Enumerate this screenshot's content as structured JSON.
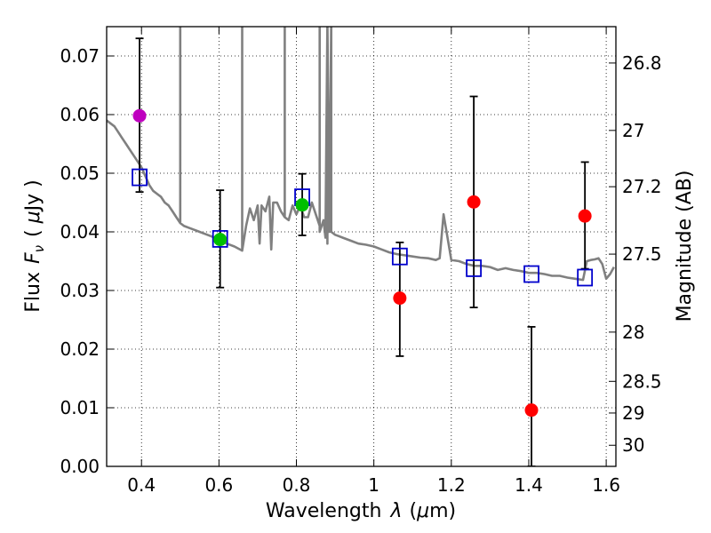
{
  "chart_data": {
    "type": "scatter",
    "xlabel": "Wavelength",
    "xlabel_symbol": "λ",
    "xlabel_unit_open": "(",
    "xlabel_unit_mu": "μ",
    "xlabel_unit_rest": "m)",
    "ylabel": "Flux",
    "ylabel_symbol": "F",
    "ylabel_symbol_sub": "ν",
    "ylabel_unit_open": "(",
    "ylabel_unit_mu": "μ",
    "ylabel_unit_rest": "Jy )",
    "y2label": "Magnitude (AB)",
    "xlim": [
      0.31,
      1.625
    ],
    "ylim": [
      0.0,
      0.075
    ],
    "grid": true,
    "x_ticks": [
      {
        "value": 0.4,
        "label": "0.4"
      },
      {
        "value": 0.6,
        "label": "0.6"
      },
      {
        "value": 0.8,
        "label": "0.8"
      },
      {
        "value": 1.0,
        "label": "1"
      },
      {
        "value": 1.2,
        "label": "1.2"
      },
      {
        "value": 1.4,
        "label": "1.4"
      },
      {
        "value": 1.6,
        "label": "1.6"
      }
    ],
    "y_ticks": [
      {
        "value": 0.0,
        "label": "0.00"
      },
      {
        "value": 0.01,
        "label": "0.01"
      },
      {
        "value": 0.02,
        "label": "0.02"
      },
      {
        "value": 0.03,
        "label": "0.03"
      },
      {
        "value": 0.04,
        "label": "0.04"
      },
      {
        "value": 0.05,
        "label": "0.05"
      },
      {
        "value": 0.06,
        "label": "0.06"
      },
      {
        "value": 0.07,
        "label": "0.07"
      }
    ],
    "y2_ticks": [
      {
        "label": "26.8",
        "flux": 0.0688
      },
      {
        "label": "27",
        "flux": 0.0573
      },
      {
        "label": "27.2",
        "flux": 0.0477
      },
      {
        "label": "27.5",
        "flux": 0.0362
      },
      {
        "label": "28",
        "flux": 0.0229
      },
      {
        "label": "28.5",
        "flux": 0.0145
      },
      {
        "label": "29",
        "flux": 0.0091
      },
      {
        "label": "30",
        "flux": 0.0036
      }
    ],
    "series": [
      {
        "name": "SED model",
        "kind": "line",
        "color": "#808080",
        "x": [
          0.31,
          0.32,
          0.33,
          0.34,
          0.35,
          0.36,
          0.37,
          0.38,
          0.39,
          0.4,
          0.41,
          0.42,
          0.43,
          0.44,
          0.45,
          0.46,
          0.47,
          0.48,
          0.49,
          0.5,
          0.5,
          0.5,
          0.51,
          0.53,
          0.55,
          0.57,
          0.59,
          0.6,
          0.62,
          0.64,
          0.66,
          0.66,
          0.66,
          0.67,
          0.68,
          0.69,
          0.7,
          0.705,
          0.71,
          0.72,
          0.73,
          0.735,
          0.74,
          0.75,
          0.76,
          0.77,
          0.77,
          0.77,
          0.78,
          0.79,
          0.8,
          0.81,
          0.82,
          0.83,
          0.84,
          0.85,
          0.86,
          0.86,
          0.86,
          0.87,
          0.875,
          0.88,
          0.88,
          0.88,
          0.885,
          0.89,
          0.89,
          0.89,
          0.9,
          0.92,
          0.94,
          0.96,
          0.98,
          1.0,
          1.02,
          1.04,
          1.06,
          1.08,
          1.1,
          1.12,
          1.14,
          1.16,
          1.17,
          1.18,
          1.2,
          1.22,
          1.24,
          1.26,
          1.28,
          1.3,
          1.32,
          1.34,
          1.36,
          1.38,
          1.4,
          1.42,
          1.44,
          1.46,
          1.48,
          1.5,
          1.52,
          1.54,
          1.55,
          1.56,
          1.57,
          1.58,
          1.59,
          1.6,
          1.61,
          1.62
        ],
        "y": [
          0.059,
          0.0585,
          0.058,
          0.057,
          0.056,
          0.055,
          0.054,
          0.053,
          0.052,
          0.051,
          0.0495,
          0.048,
          0.047,
          0.0465,
          0.046,
          0.045,
          0.0445,
          0.0435,
          0.0425,
          0.0415,
          0.076,
          0.0415,
          0.041,
          0.0405,
          0.04,
          0.0395,
          0.039,
          0.0385,
          0.038,
          0.0375,
          0.0368,
          0.076,
          0.0368,
          0.041,
          0.044,
          0.042,
          0.0445,
          0.038,
          0.0445,
          0.0435,
          0.046,
          0.037,
          0.045,
          0.045,
          0.0435,
          0.0425,
          0.076,
          0.0425,
          0.042,
          0.0445,
          0.043,
          0.0445,
          0.0425,
          0.0425,
          0.045,
          0.043,
          0.041,
          0.076,
          0.04,
          0.042,
          0.039,
          0.076,
          0.038,
          0.076,
          0.04,
          0.076,
          0.042,
          0.04,
          0.0395,
          0.039,
          0.0385,
          0.038,
          0.0378,
          0.0375,
          0.037,
          0.0365,
          0.0362,
          0.036,
          0.0358,
          0.0356,
          0.0355,
          0.0352,
          0.0355,
          0.043,
          0.0352,
          0.035,
          0.0345,
          0.0342,
          0.0342,
          0.034,
          0.0335,
          0.0338,
          0.0335,
          0.0333,
          0.033,
          0.033,
          0.0328,
          0.0325,
          0.0325,
          0.0322,
          0.032,
          0.0318,
          0.035,
          0.0352,
          0.0353,
          0.0355,
          0.0345,
          0.032,
          0.0328,
          0.034
        ]
      },
      {
        "name": "Model photometry",
        "kind": "open-square",
        "color": "#0000cc",
        "x": [
          0.395,
          0.603,
          0.815,
          1.067,
          1.258,
          1.407,
          1.545
        ],
        "y": [
          0.0493,
          0.0388,
          0.0459,
          0.0358,
          0.0338,
          0.0328,
          0.0322
        ]
      },
      {
        "name": "Observed (purple)",
        "kind": "filled-circle",
        "color": "#bf00bf",
        "x": [
          0.395
        ],
        "y": [
          0.0598
        ],
        "yerr_low": [
          0.0468
        ],
        "yerr_high": [
          0.073
        ]
      },
      {
        "name": "Observed (green)",
        "kind": "filled-circle",
        "color": "#00bf00",
        "x": [
          0.603,
          0.815
        ],
        "y": [
          0.0387,
          0.0446
        ],
        "yerr_low": [
          0.0305,
          0.0394
        ],
        "yerr_high": [
          0.0471,
          0.0499
        ]
      },
      {
        "name": "Observed (red)",
        "kind": "filled-circle",
        "color": "#ff0000",
        "x": [
          1.067,
          1.258,
          1.407,
          1.545
        ],
        "y": [
          0.0287,
          0.0451,
          0.0096,
          0.0427
        ],
        "yerr_low": [
          0.0188,
          0.0271,
          0.0,
          0.0337
        ],
        "yerr_high": [
          0.0382,
          0.0631,
          0.0238,
          0.0519
        ]
      }
    ]
  }
}
